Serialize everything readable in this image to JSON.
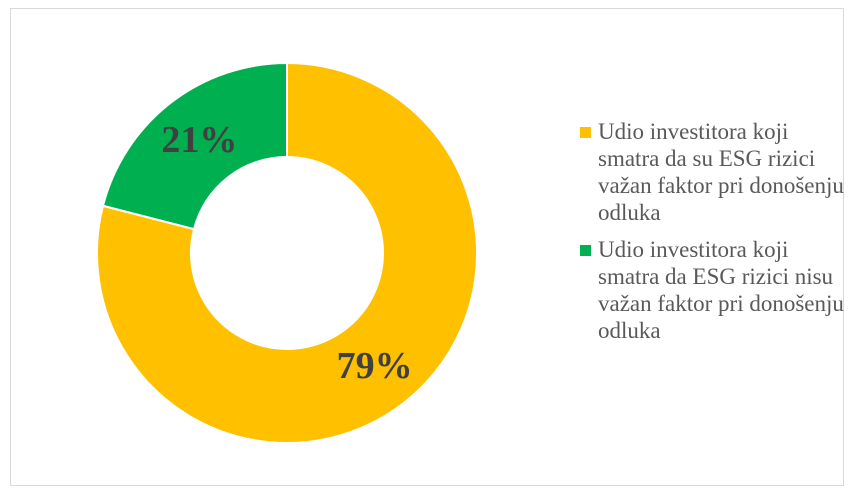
{
  "chart_data": {
    "type": "pie",
    "variant": "donut",
    "slices": [
      {
        "label": "Udio investitora koji smatra da su ESG rizici važan faktor pri donošenju odluka",
        "value": 79,
        "display": "79%",
        "color": "#FFC000"
      },
      {
        "label": "Udio investitora koji smatra da ESG rizici nisu važan faktor pri donošenju odluka",
        "value": 21,
        "display": "21%",
        "color": "#00B050"
      }
    ],
    "legend_position": "right",
    "start": "12 o'clock",
    "direction": "clockwise"
  }
}
